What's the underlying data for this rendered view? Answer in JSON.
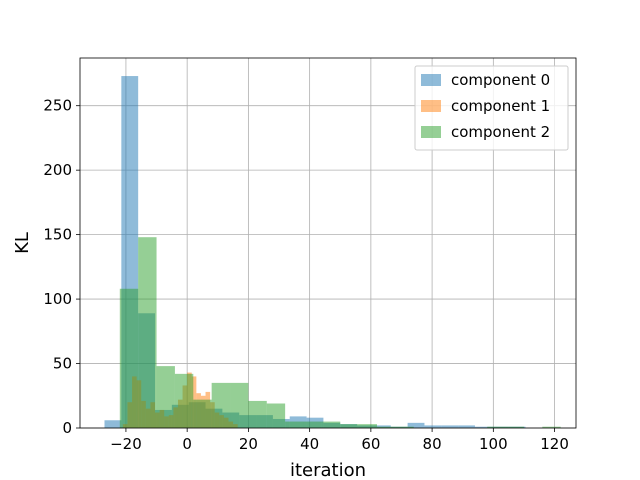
{
  "chart_data": {
    "type": "histogram",
    "title": "",
    "xlabel": "iteration",
    "ylabel": "KL",
    "xlim": [
      -35,
      127
    ],
    "ylim": [
      0,
      287
    ],
    "xticks": [
      -20,
      0,
      20,
      40,
      60,
      80,
      100,
      120
    ],
    "yticks": [
      0,
      50,
      100,
      150,
      200,
      250
    ],
    "xtick_labels": [
      "−20",
      "0",
      "20",
      "40",
      "60",
      "80",
      "100",
      "120"
    ],
    "ytick_labels": [
      "0",
      "50",
      "100",
      "150",
      "200",
      "250"
    ],
    "grid": true,
    "legend_position": "top-right",
    "series": [
      {
        "name": "component 0",
        "color": "#1f77b4",
        "alpha": 0.5,
        "bins": [
          {
            "x0": -27,
            "x1": -21.5,
            "count": 6
          },
          {
            "x0": -21.5,
            "x1": -16,
            "count": 273
          },
          {
            "x0": -16,
            "x1": -10.5,
            "count": 89
          },
          {
            "x0": -10.5,
            "x1": -5,
            "count": 14
          },
          {
            "x0": -5,
            "x1": 0.5,
            "count": 18
          },
          {
            "x0": 0.5,
            "x1": 6,
            "count": 20
          },
          {
            "x0": 6,
            "x1": 11.5,
            "count": 15
          },
          {
            "x0": 11.5,
            "x1": 17,
            "count": 12
          },
          {
            "x0": 17,
            "x1": 22.5,
            "count": 10
          },
          {
            "x0": 22.5,
            "x1": 28,
            "count": 10
          },
          {
            "x0": 28,
            "x1": 33.5,
            "count": 7
          },
          {
            "x0": 33.5,
            "x1": 39,
            "count": 9
          },
          {
            "x0": 39,
            "x1": 44.5,
            "count": 8
          },
          {
            "x0": 44.5,
            "x1": 50,
            "count": 4
          },
          {
            "x0": 50,
            "x1": 55.5,
            "count": 3
          },
          {
            "x0": 55.5,
            "x1": 61,
            "count": 2
          },
          {
            "x0": 61,
            "x1": 66.5,
            "count": 2
          },
          {
            "x0": 66.5,
            "x1": 72,
            "count": 1
          },
          {
            "x0": 72,
            "x1": 77.5,
            "count": 4
          },
          {
            "x0": 77.5,
            "x1": 83,
            "count": 2
          },
          {
            "x0": 83,
            "x1": 88.5,
            "count": 2
          },
          {
            "x0": 88.5,
            "x1": 94,
            "count": 2
          },
          {
            "x0": 94,
            "x1": 99.5,
            "count": 1
          },
          {
            "x0": 99.5,
            "x1": 105,
            "count": 1
          },
          {
            "x0": 105,
            "x1": 110.5,
            "count": 1
          }
        ]
      },
      {
        "name": "component 1",
        "color": "#ff7f0e",
        "alpha": 0.5,
        "bins": [
          {
            "x0": -21,
            "x1": -19.5,
            "count": 3
          },
          {
            "x0": -19.5,
            "x1": -18,
            "count": 20
          },
          {
            "x0": -18,
            "x1": -16.5,
            "count": 40
          },
          {
            "x0": -16.5,
            "x1": -15,
            "count": 37
          },
          {
            "x0": -15,
            "x1": -13.5,
            "count": 21
          },
          {
            "x0": -13.5,
            "x1": -12,
            "count": 15
          },
          {
            "x0": -12,
            "x1": -10.5,
            "count": 20
          },
          {
            "x0": -10.5,
            "x1": -9,
            "count": 12
          },
          {
            "x0": -9,
            "x1": -7.5,
            "count": 14
          },
          {
            "x0": -7.5,
            "x1": -6,
            "count": 9
          },
          {
            "x0": -6,
            "x1": -4.5,
            "count": 10
          },
          {
            "x0": -4.5,
            "x1": -3,
            "count": 16
          },
          {
            "x0": -3,
            "x1": -1.5,
            "count": 22
          },
          {
            "x0": -1.5,
            "x1": 0,
            "count": 33
          },
          {
            "x0": 0,
            "x1": 1.5,
            "count": 43
          },
          {
            "x0": 1.5,
            "x1": 3,
            "count": 40
          },
          {
            "x0": 3,
            "x1": 4.5,
            "count": 27
          },
          {
            "x0": 4.5,
            "x1": 6,
            "count": 25
          },
          {
            "x0": 6,
            "x1": 7.5,
            "count": 28
          },
          {
            "x0": 7.5,
            "x1": 9,
            "count": 20
          },
          {
            "x0": 9,
            "x1": 10.5,
            "count": 12
          },
          {
            "x0": 10.5,
            "x1": 12,
            "count": 10
          },
          {
            "x0": 12,
            "x1": 13.5,
            "count": 8
          },
          {
            "x0": 13.5,
            "x1": 15,
            "count": 5
          },
          {
            "x0": 15,
            "x1": 16.5,
            "count": 3
          }
        ]
      },
      {
        "name": "component 2",
        "color": "#2ca02c",
        "alpha": 0.5,
        "bins": [
          {
            "x0": -22,
            "x1": -16,
            "count": 108
          },
          {
            "x0": -16,
            "x1": -10,
            "count": 148
          },
          {
            "x0": -10,
            "x1": -4,
            "count": 48
          },
          {
            "x0": -4,
            "x1": 2,
            "count": 42
          },
          {
            "x0": 2,
            "x1": 8,
            "count": 22
          },
          {
            "x0": 8,
            "x1": 14,
            "count": 35
          },
          {
            "x0": 14,
            "x1": 20,
            "count": 35
          },
          {
            "x0": 20,
            "x1": 26,
            "count": 21
          },
          {
            "x0": 26,
            "x1": 32,
            "count": 19
          },
          {
            "x0": 32,
            "x1": 38,
            "count": 5
          },
          {
            "x0": 38,
            "x1": 44,
            "count": 5
          },
          {
            "x0": 44,
            "x1": 50,
            "count": 5
          },
          {
            "x0": 50,
            "x1": 56,
            "count": 3
          },
          {
            "x0": 56,
            "x1": 62,
            "count": 3
          },
          {
            "x0": 62,
            "x1": 68,
            "count": 1
          },
          {
            "x0": 68,
            "x1": 74,
            "count": 1
          },
          {
            "x0": 74,
            "x1": 80,
            "count": 0
          },
          {
            "x0": 80,
            "x1": 86,
            "count": 0
          },
          {
            "x0": 86,
            "x1": 92,
            "count": 0
          },
          {
            "x0": 92,
            "x1": 98,
            "count": 0
          },
          {
            "x0": 98,
            "x1": 104,
            "count": 1
          },
          {
            "x0": 104,
            "x1": 110,
            "count": 1
          },
          {
            "x0": 110,
            "x1": 116,
            "count": 0
          },
          {
            "x0": 116,
            "x1": 122,
            "count": 1
          }
        ]
      }
    ]
  }
}
